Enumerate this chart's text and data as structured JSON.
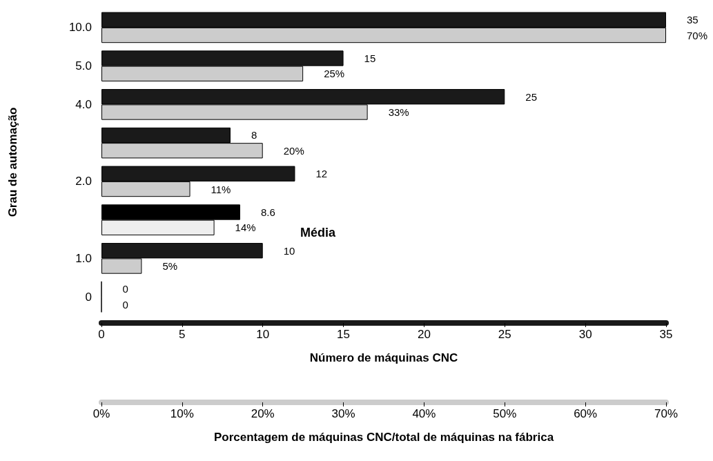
{
  "chart_data": {
    "type": "bar",
    "orientation": "horizontal",
    "ylabel": "Grau de automação",
    "xlabel": "Número de máquinas CNC",
    "x2label": "Porcentagem de máquinas CNC/total de máquinas na fábrica",
    "categories": [
      "10.0",
      "5.0",
      "4.0",
      null,
      "2.0",
      null,
      "1.0",
      "0"
    ],
    "series": [
      {
        "colors": [
          "#1a1a1a",
          "#1a1a1a",
          "#1a1a1a",
          "#1a1a1a",
          "#1a1a1a",
          "#000000",
          "#1a1a1a",
          "#000000"
        ],
        "values": [
          35,
          15,
          25,
          8,
          12,
          8.6,
          10,
          0
        ],
        "value_labels": [
          "35",
          "15",
          "25",
          "8",
          "12",
          "8.6",
          "10",
          "0"
        ]
      },
      {
        "axis": "x2",
        "colors": [
          "#cccccc",
          "#cccccc",
          "#cccccc",
          "#cccccc",
          "#cccccc",
          "#eeeeee",
          "#cccccc",
          "#000000"
        ],
        "values": [
          70,
          25,
          33,
          20,
          11,
          14,
          5,
          0
        ],
        "value_labels": [
          "70%",
          "25%",
          "33%",
          "20%",
          "11%",
          "14%",
          "5%",
          "0"
        ]
      }
    ],
    "xlim": [
      0,
      35
    ],
    "xticks": [
      0,
      5,
      10,
      15,
      20,
      25,
      30,
      35
    ],
    "x2lim": [
      0,
      70
    ],
    "x2ticks": [
      {
        "value": 0,
        "label": "0%"
      },
      {
        "value": 10,
        "label": "10%"
      },
      {
        "value": 20,
        "label": "20%"
      },
      {
        "value": 30,
        "label": "30%"
      },
      {
        "value": 40,
        "label": "40%"
      },
      {
        "value": 50,
        "label": "50%"
      },
      {
        "value": 60,
        "label": "60%"
      },
      {
        "value": 70,
        "label": "70%"
      }
    ],
    "annotations": [
      "Média"
    ],
    "grid": false
  }
}
